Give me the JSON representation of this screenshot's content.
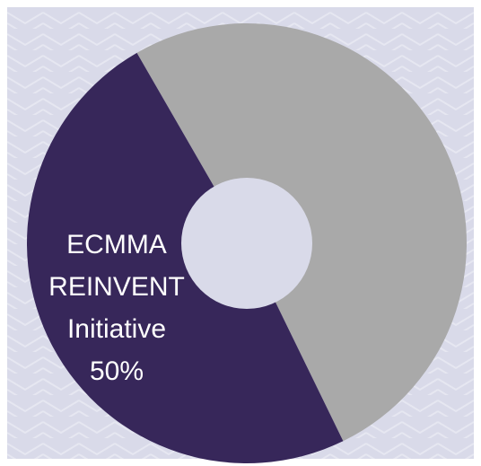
{
  "colors": {
    "background": "#d9dae9",
    "pattern": "#e6e7f1",
    "hole": "#d9dae9",
    "label_text": "#ffffff"
  },
  "chart_data": {
    "type": "pie",
    "variant": "donut",
    "title": "",
    "legend": "none",
    "slices": [
      {
        "label_lines": [
          "ECMMA",
          "REINVENT",
          "Initiative",
          "50%"
        ],
        "value": 50,
        "color": "#37275a"
      },
      {
        "label_lines": [],
        "value": 50,
        "color": "#a9a9a9"
      }
    ]
  }
}
